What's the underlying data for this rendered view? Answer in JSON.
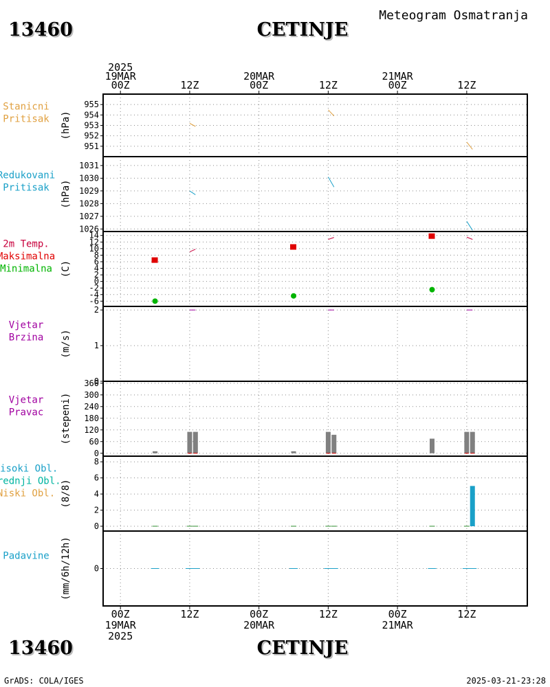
{
  "header": {
    "station_id": "13460",
    "station_name": "CETINJE",
    "product": "Meteogram Osmatranja"
  },
  "footer": {
    "station_id": "13460",
    "station_name": "CETINJE",
    "credit": "GrADS: COLA/IGES",
    "timestamp": "2025-03-21-23:28"
  },
  "time_axis": {
    "top_labels": [
      {
        "lines": [
          "2025",
          "19MAR",
          "00Z"
        ]
      },
      {
        "lines": [
          "12Z"
        ]
      },
      {
        "lines": [
          "20MAR",
          "00Z"
        ]
      },
      {
        "lines": [
          "12Z"
        ]
      },
      {
        "lines": [
          "21MAR",
          "00Z"
        ]
      },
      {
        "lines": [
          "12Z"
        ]
      }
    ],
    "bottom_labels": [
      {
        "lines": [
          "00Z",
          "19MAR",
          "2025"
        ]
      },
      {
        "lines": [
          "12Z"
        ]
      },
      {
        "lines": [
          "00Z",
          "20MAR"
        ]
      },
      {
        "lines": [
          "12Z"
        ]
      },
      {
        "lines": [
          "00Z",
          "21MAR"
        ]
      },
      {
        "lines": [
          "12Z"
        ]
      }
    ],
    "tick_hours": [
      0,
      12,
      24,
      36,
      48,
      60
    ],
    "range_hours": [
      -3,
      70.5
    ]
  },
  "chart_data": [
    {
      "id": "station-pressure",
      "type": "line",
      "labels": [
        {
          "text": "Stanicni",
          "color": "#e0a040"
        },
        {
          "text": "Pritisak",
          "color": "#e0a040"
        }
      ],
      "unit": "(hPa)",
      "ylim": [
        950,
        956
      ],
      "ticks": [
        "951",
        "952",
        "953",
        "954",
        "955"
      ],
      "tick_values": [
        951,
        952,
        953,
        954,
        955
      ],
      "color": "#e0a040",
      "segments": [
        [
          [
            12,
            953.2
          ],
          [
            13,
            952.9
          ]
        ],
        [
          [
            36,
            954.5
          ],
          [
            37,
            953.9
          ]
        ],
        [
          [
            60,
            951.4
          ],
          [
            61,
            950.7
          ]
        ]
      ]
    },
    {
      "id": "sea-level-pressure",
      "type": "line",
      "labels": [
        {
          "text": "Redukovani",
          "color": "#1aa0c8"
        },
        {
          "text": "Pritisak",
          "color": "#1aa0c8"
        }
      ],
      "unit": "(hPa)",
      "ylim": [
        1025.8,
        1031.7
      ],
      "ticks": [
        "1026",
        "1027",
        "1028",
        "1029",
        "1030",
        "1031"
      ],
      "tick_values": [
        1026,
        1027,
        1028,
        1029,
        1030,
        1031
      ],
      "color": "#1aa0c8",
      "segments": [
        [
          [
            12,
            1029.0
          ],
          [
            13,
            1028.7
          ]
        ],
        [
          [
            36,
            1030.1
          ],
          [
            37,
            1029.3
          ]
        ],
        [
          [
            60,
            1026.6
          ],
          [
            61,
            1025.9
          ]
        ]
      ]
    },
    {
      "id": "temperature",
      "type": "line+scatter",
      "labels": [
        {
          "text": "2m Temp.",
          "color": "#c8003c"
        },
        {
          "text": "Maksimalna",
          "color": "#e00000"
        },
        {
          "text": "Minimalna",
          "color": "#00b400"
        }
      ],
      "unit": "(C)",
      "ylim": [
        -7.6,
        15.2
      ],
      "ticks": [
        "-6",
        "-4",
        "-2",
        "0",
        "2",
        "4",
        "6",
        "8",
        "10",
        "12",
        "14"
      ],
      "tick_values": [
        -6,
        -4,
        -2,
        0,
        2,
        4,
        6,
        8,
        10,
        12,
        14
      ],
      "color": "#c8003c",
      "segments": [
        [
          [
            12,
            9.0
          ],
          [
            13,
            9.8
          ]
        ],
        [
          [
            36,
            12.8
          ],
          [
            37,
            13.4
          ]
        ],
        [
          [
            60,
            13.5
          ],
          [
            61,
            12.8
          ]
        ]
      ],
      "maximum": {
        "color": "#e00000",
        "points": [
          [
            6,
            6.5
          ],
          [
            30,
            10.5
          ],
          [
            54,
            13.8
          ]
        ]
      },
      "minimum": {
        "color": "#00b400",
        "points": [
          [
            6,
            -6.0
          ],
          [
            30,
            -4.4
          ],
          [
            54,
            -2.5
          ]
        ]
      }
    },
    {
      "id": "wind-speed",
      "type": "line",
      "labels": [
        {
          "text": "Vjetar",
          "color": "#a000a0"
        },
        {
          "text": "Brzina",
          "color": "#a000a0"
        }
      ],
      "unit": "(m/s)",
      "ylim": [
        0,
        2.1
      ],
      "ticks": [
        "0",
        "1",
        "2"
      ],
      "tick_values": [
        0,
        1,
        2
      ],
      "color": "#a000a0",
      "segments": [
        [
          [
            12,
            2.0
          ],
          [
            13,
            2.0
          ]
        ],
        [
          [
            36,
            2.0
          ],
          [
            37,
            2.0
          ]
        ],
        [
          [
            60,
            2.0
          ],
          [
            61,
            2.0
          ]
        ]
      ]
    },
    {
      "id": "wind-direction",
      "type": "bar",
      "labels": [
        {
          "text": "Vjetar",
          "color": "#a000a0"
        },
        {
          "text": "Pravac",
          "color": "#a000a0"
        }
      ],
      "unit": "(stepeni)",
      "ylim": [
        -15,
        370
      ],
      "ticks": [
        "0",
        "60",
        "120",
        "180",
        "240",
        "300",
        "360"
      ],
      "tick_values": [
        0,
        60,
        120,
        180,
        240,
        300,
        360
      ],
      "color": "#808080",
      "bars": [
        [
          6,
          10
        ],
        [
          12,
          110
        ],
        [
          13,
          110
        ],
        [
          30,
          10
        ],
        [
          36,
          110
        ],
        [
          37,
          95
        ],
        [
          54,
          75
        ],
        [
          60,
          110
        ],
        [
          61,
          110
        ]
      ]
    },
    {
      "id": "cloud-cover",
      "type": "bar",
      "labels": [
        {
          "text": "Visoki Obl.",
          "color": "#1aa0c8"
        },
        {
          "text": "Srednji Obl.",
          "color": "#00b4a0"
        },
        {
          "text": "Niski Obl.",
          "color": "#e0a040"
        }
      ],
      "unit": "(8/8)",
      "ylim": [
        -0.6,
        8.7
      ],
      "ticks": [
        "0",
        "2",
        "4",
        "6",
        "8"
      ],
      "tick_values": [
        0,
        2,
        4,
        6,
        8
      ],
      "color": "#1aa0c8",
      "bars": [
        [
          61,
          5
        ]
      ]
    },
    {
      "id": "precipitation",
      "type": "bar",
      "labels": [
        {
          "text": "Padavine",
          "color": "#1aa0c8"
        }
      ],
      "unit": "(mm/6h/12h)",
      "ylim": [
        -5,
        5
      ],
      "ticks": [
        "0"
      ],
      "tick_values": [
        0
      ],
      "color": "#1aa0c8",
      "bars": [
        [
          6,
          0
        ],
        [
          12,
          0
        ],
        [
          13,
          0
        ],
        [
          30,
          0
        ],
        [
          36,
          0
        ],
        [
          37,
          0
        ],
        [
          54,
          0
        ],
        [
          60,
          0
        ],
        [
          61,
          0
        ]
      ]
    }
  ]
}
